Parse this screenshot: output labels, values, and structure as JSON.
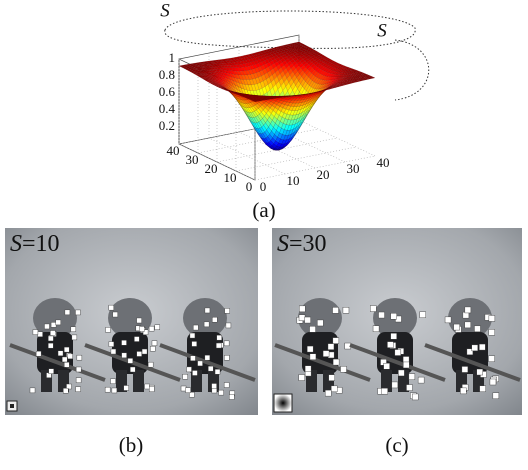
{
  "panel_a": {
    "axis_labels": [
      "S",
      "S"
    ],
    "z_ticks": [
      0.2,
      0.4,
      0.6,
      0.8,
      1
    ],
    "x_ticks": [
      0,
      10,
      20,
      30,
      40
    ],
    "y_ticks": [
      0,
      10,
      20,
      30,
      40
    ],
    "caption": "(a)"
  },
  "panel_b": {
    "label": [
      "S",
      "=10"
    ],
    "caption": "(b)"
  },
  "panel_c": {
    "label": [
      "S",
      "=30"
    ],
    "caption": "(c)"
  }
}
